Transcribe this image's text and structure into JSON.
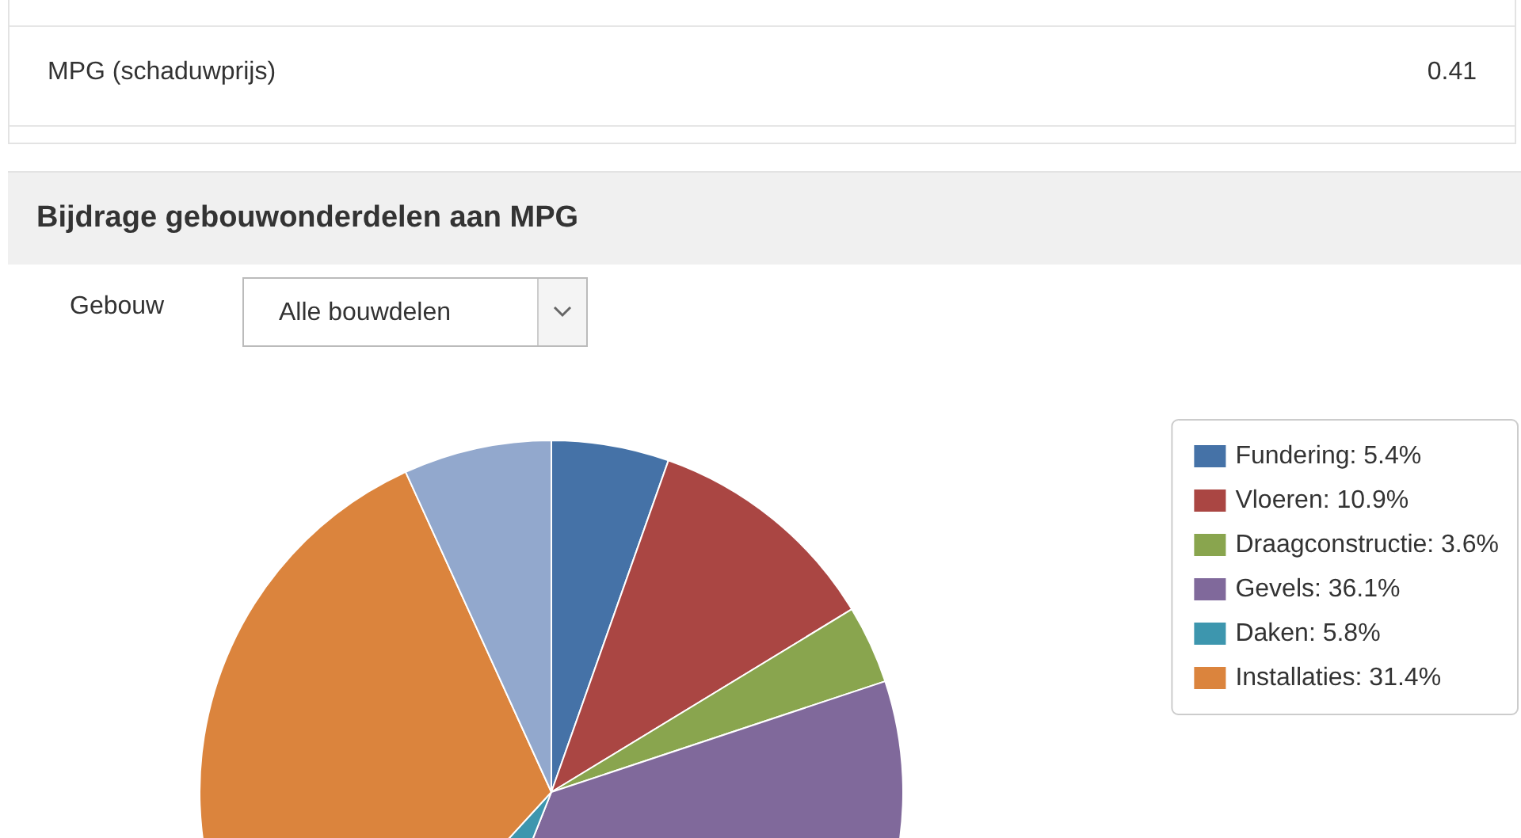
{
  "chart_data": {
    "type": "pie",
    "title": "Bijdrage gebouwonderdelen aan MPG",
    "annotations": [
      "MPG (schaduwprijs)",
      "0.41",
      "Gebouw",
      "Alle bouwdelen"
    ],
    "categories": [
      "Fundering: 5.4%",
      "Vloeren: 10.9%",
      "Draagconstructie: 3.6%",
      "Gevels: 36.1%",
      "Daken: 5.8%",
      "Installaties: 31.4%",
      null
    ],
    "values": [
      5.4,
      10.9,
      3.6,
      36.1,
      5.8,
      31.4,
      6.8
    ],
    "colors": [
      "#4572a7",
      "#aa4643",
      "#89a54e",
      "#80699b",
      "#3d96ae",
      "#db843d",
      "#92a8cd"
    ],
    "legend": "top right"
  }
}
